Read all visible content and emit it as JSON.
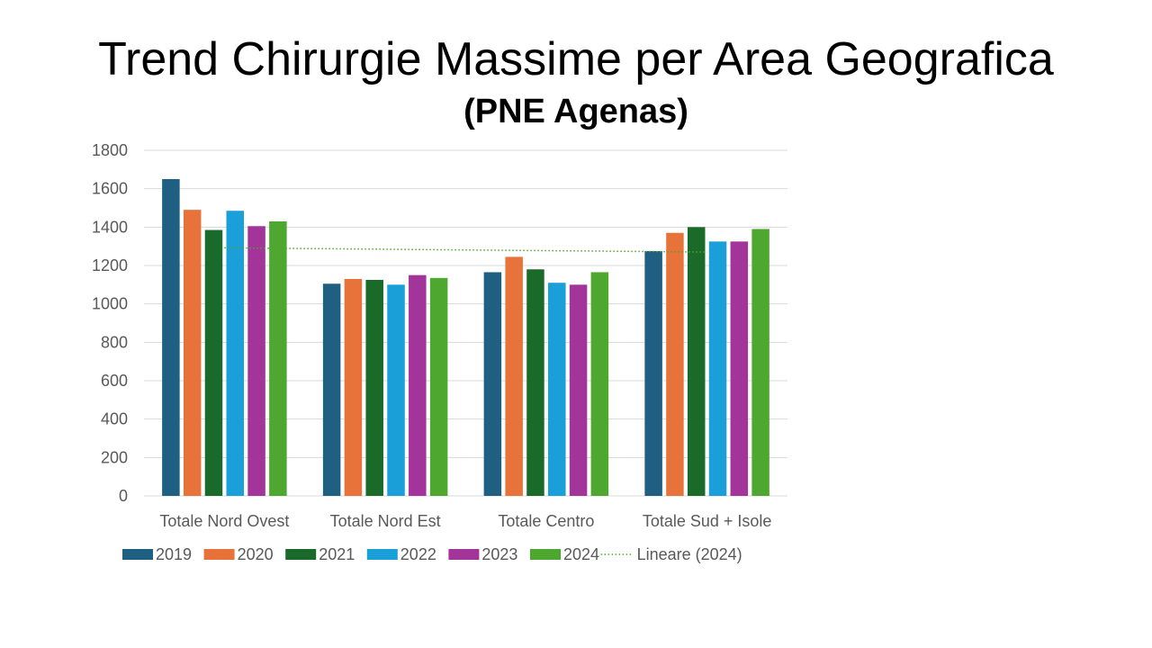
{
  "slide": {
    "title": "Trend Chirurgie Massime per Area Geografica",
    "subtitle": "(PNE Agenas)"
  },
  "chart_data": {
    "type": "bar",
    "title": "",
    "xlabel": "",
    "ylabel": "",
    "ylim": [
      0,
      1800
    ],
    "yticks": [
      0,
      200,
      400,
      600,
      800,
      1000,
      1200,
      1400,
      1600,
      1800
    ],
    "grid": true,
    "legend_position": "bottom",
    "categories": [
      "Totale Nord Ovest",
      "Totale Nord Est",
      "Totale Centro",
      "Totale Sud + Isole"
    ],
    "series": [
      {
        "name": "2019",
        "color": "#1f5f82",
        "values": [
          1650,
          1105,
          1165,
          1275
        ]
      },
      {
        "name": "2020",
        "color": "#e8733a",
        "values": [
          1490,
          1130,
          1245,
          1370
        ]
      },
      {
        "name": "2021",
        "color": "#1a6b2a",
        "values": [
          1385,
          1125,
          1180,
          1400
        ]
      },
      {
        "name": "2022",
        "color": "#1a9fd8",
        "values": [
          1485,
          1100,
          1110,
          1325
        ]
      },
      {
        "name": "2023",
        "color": "#a3349a",
        "values": [
          1405,
          1150,
          1100,
          1325
        ]
      },
      {
        "name": "2024",
        "color": "#4ea72e",
        "values": [
          1430,
          1135,
          1165,
          1390
        ]
      }
    ],
    "trendline": {
      "name": "Lineare (2024)",
      "color": "#4ea72e",
      "style": "dotted",
      "start_value": 1292,
      "end_value": 1270
    }
  }
}
